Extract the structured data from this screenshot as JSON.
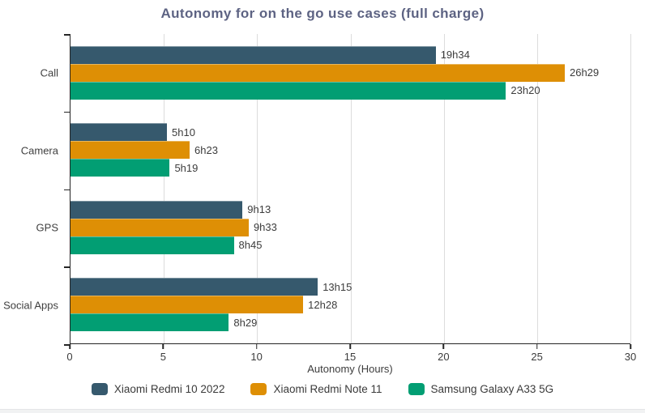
{
  "chart_data": {
    "type": "bar",
    "orientation": "horizontal",
    "title": "Autonomy for on the go use cases (full charge)",
    "xlabel": "Autonomy (Hours)",
    "ylabel": "",
    "categories": [
      "Call",
      "Camera",
      "GPS",
      "Social Apps"
    ],
    "series": [
      {
        "name": "Xiaomi Redmi 10 2022",
        "color": "#36596d",
        "values_hours": [
          19.567,
          5.167,
          9.217,
          13.25
        ],
        "labels": [
          "19h34",
          "5h10",
          "9h13",
          "13h15"
        ]
      },
      {
        "name": "Xiaomi Redmi Note 11",
        "color": "#de8f05",
        "values_hours": [
          26.483,
          6.383,
          9.55,
          12.467
        ],
        "labels": [
          "26h29",
          "6h23",
          "9h33",
          "12h28"
        ]
      },
      {
        "name": "Samsung Galaxy A33 5G",
        "color": "#029e73",
        "values_hours": [
          23.333,
          5.317,
          8.75,
          8.483
        ],
        "labels": [
          "23h20",
          "5h19",
          "8h45",
          "8h29"
        ]
      }
    ],
    "xlim": [
      0,
      30
    ],
    "xticks": [
      0,
      5,
      10,
      15,
      20,
      25,
      30
    ],
    "grid": "vertical",
    "legend_position": "bottom",
    "colors": {
      "title_text": "#5d6383",
      "axis_text": "#3c3c3c",
      "gridline": "#dcdcdc",
      "axis_line": "#262626"
    }
  }
}
